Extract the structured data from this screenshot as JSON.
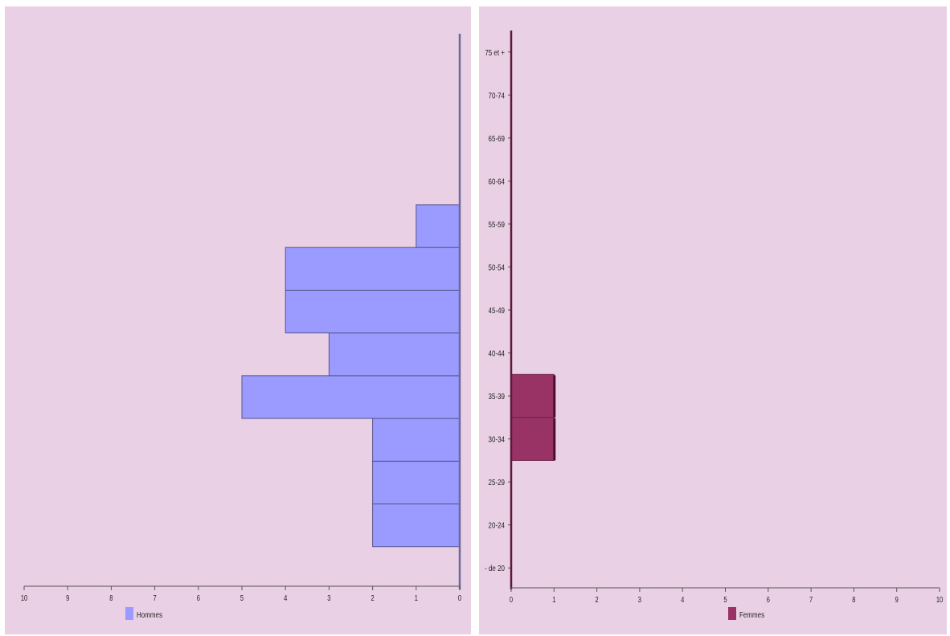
{
  "chart_data": [
    {
      "type": "bar",
      "orientation": "horizontal",
      "direction": "right-to-left",
      "categories": [
        "- de 20",
        "20-24",
        "25-29",
        "30-34",
        "35-39",
        "40-44",
        "45-49",
        "50-54",
        "55-59",
        "60-64",
        "65-69",
        "70-74",
        "75 et +"
      ],
      "series": [
        {
          "name": "Hommes",
          "color": "#9a9aff",
          "values": [
            0,
            2,
            2,
            2,
            5,
            3,
            4,
            4,
            1,
            0,
            0,
            0,
            0
          ]
        }
      ],
      "xlim": [
        0,
        10
      ],
      "x_ticks": [
        "10",
        "9",
        "8",
        "7",
        "6",
        "5",
        "4",
        "3",
        "2",
        "1",
        "0"
      ],
      "show_category_labels": false,
      "legend_position": "bottom",
      "grid": false
    },
    {
      "type": "bar",
      "orientation": "horizontal",
      "direction": "left-to-right",
      "categories": [
        "- de 20",
        "20-24",
        "25-29",
        "30-34",
        "35-39",
        "40-44",
        "45-49",
        "50-54",
        "55-59",
        "60-64",
        "65-69",
        "70-74",
        "75 et +"
      ],
      "series": [
        {
          "name": "Femmes",
          "color": "#993366",
          "values": [
            0,
            0,
            0,
            1,
            1,
            0,
            0,
            0,
            0,
            0,
            0,
            0,
            0
          ]
        }
      ],
      "xlim": [
        0,
        10
      ],
      "x_ticks": [
        "0",
        "1",
        "2",
        "3",
        "4",
        "5",
        "6",
        "7",
        "8",
        "9",
        "10"
      ],
      "show_category_labels": true,
      "legend_position": "bottom",
      "grid": false
    }
  ]
}
